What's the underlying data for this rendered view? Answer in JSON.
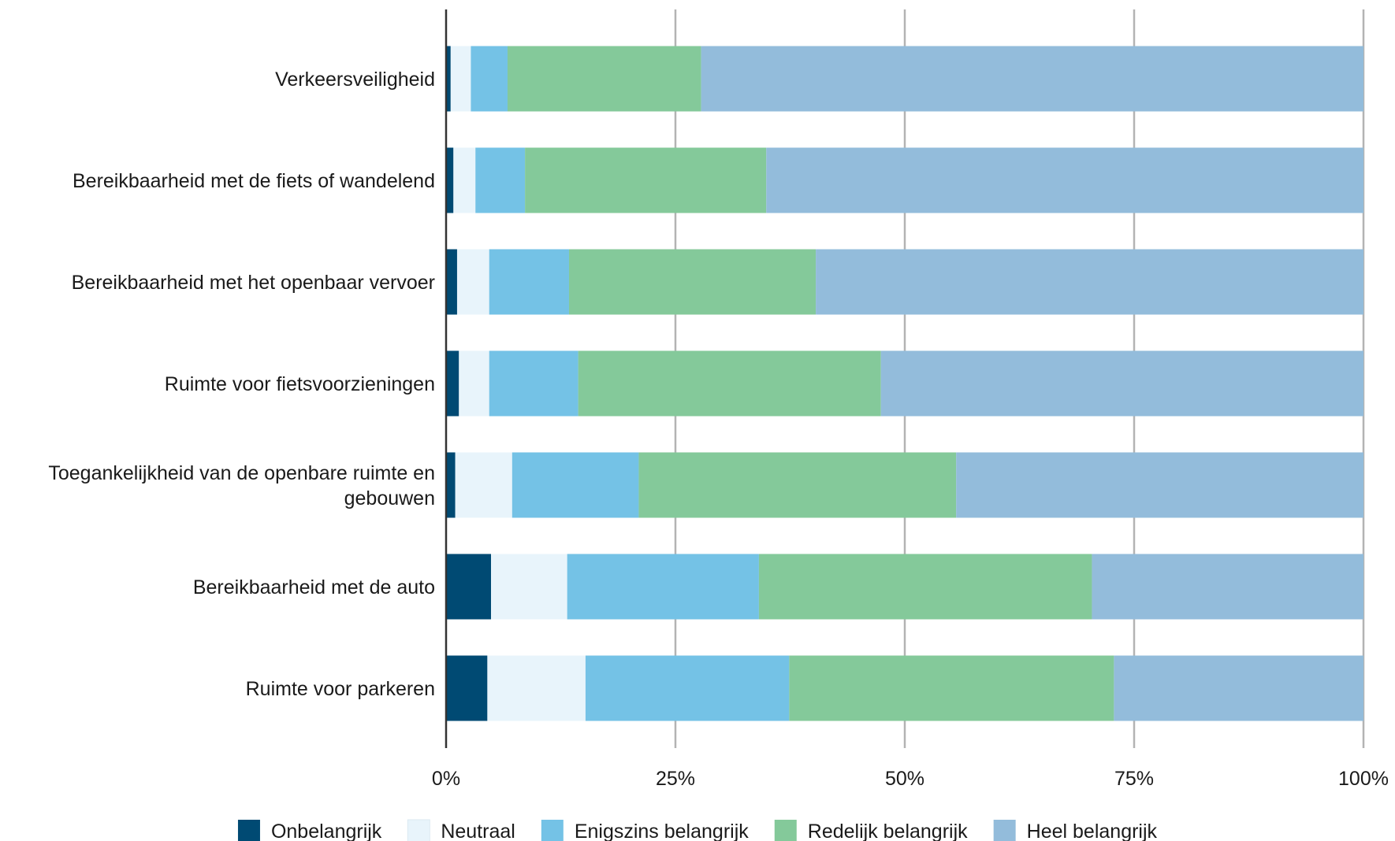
{
  "chart_data": {
    "type": "bar",
    "orientation": "horizontal",
    "stacked": true,
    "normalized": true,
    "title": "",
    "xlabel": "",
    "ylabel": "",
    "xlim": [
      0,
      100
    ],
    "x_ticks": [
      {
        "value": 0,
        "label": "0%"
      },
      {
        "value": 25,
        "label": "25%"
      },
      {
        "value": 50,
        "label": "50%"
      },
      {
        "value": 75,
        "label": "75%"
      },
      {
        "value": 100,
        "label": "100%"
      }
    ],
    "grid": "vertical",
    "legend_position": "bottom",
    "categories": [
      "Verkeersveiligheid",
      "Bereikbaarheid met de fiets of wandelend",
      "Bereikbaarheid met het openbaar vervoer",
      "Ruimte voor fietsvoorzieningen",
      "Toegankelijkheid van de openbare ruimte en gebouwen",
      "Bereikbaarheid met de auto",
      "Ruimte voor parkeren"
    ],
    "category_lines": [
      [
        "Verkeersveiligheid"
      ],
      [
        "Bereikbaarheid met de fiets of wandelend"
      ],
      [
        "Bereikbaarheid met het openbaar vervoer"
      ],
      [
        "Ruimte voor fietsvoorzieningen"
      ],
      [
        "Toegankelijkheid van de openbare ruimte en",
        "gebouwen"
      ],
      [
        "Bereikbaarheid met de auto"
      ],
      [
        "Ruimte voor parkeren"
      ]
    ],
    "series": [
      {
        "name": "Onbelangrijk",
        "color": "#004a73",
        "values": [
          0.5,
          0.8,
          1.2,
          1.4,
          1.0,
          4.9,
          4.5
        ]
      },
      {
        "name": "Neutraal",
        "color": "#e8f4fb",
        "values": [
          2.2,
          2.4,
          3.5,
          3.3,
          6.2,
          8.3,
          10.7
        ]
      },
      {
        "name": "Enigszins belangrijk",
        "color": "#74c2e6",
        "values": [
          4.0,
          5.4,
          8.7,
          9.7,
          13.8,
          20.9,
          22.2
        ]
      },
      {
        "name": "Redelijk belangrijk",
        "color": "#84c99a",
        "values": [
          21.1,
          26.3,
          26.9,
          33.0,
          34.6,
          36.3,
          35.4
        ]
      },
      {
        "name": "Heel belangrijk",
        "color": "#93bcdb",
        "values": [
          72.2,
          65.1,
          59.7,
          52.6,
          44.4,
          29.6,
          27.2
        ]
      }
    ]
  }
}
